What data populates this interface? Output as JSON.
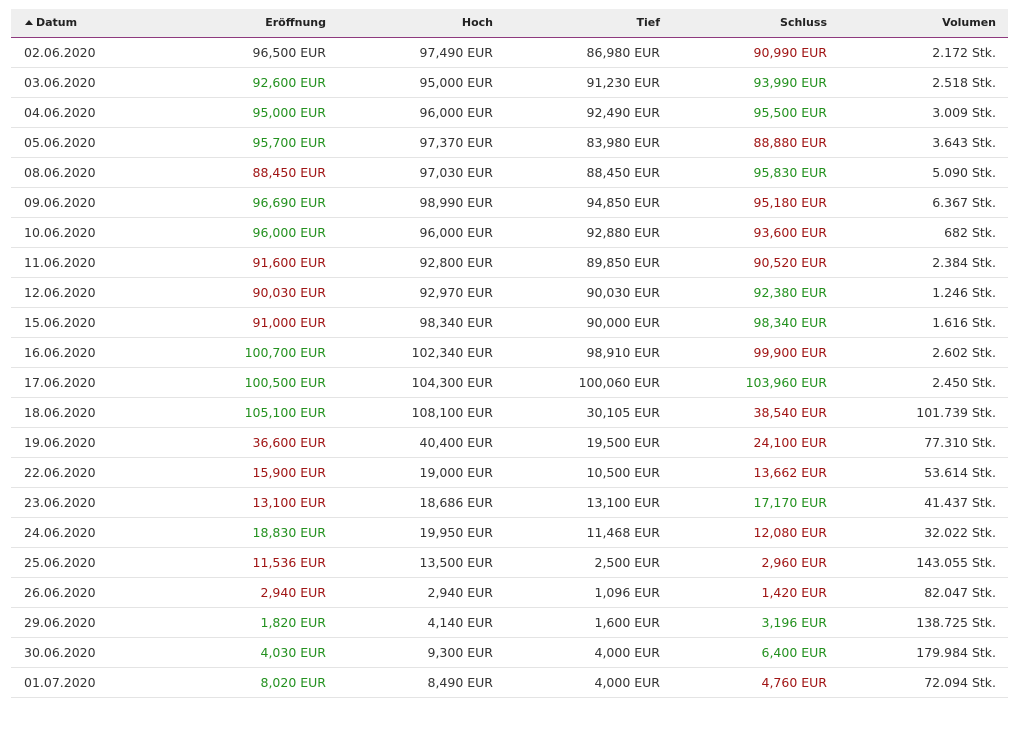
{
  "table": {
    "headers": {
      "date": "Datum",
      "open": "Eröffnung",
      "high": "Hoch",
      "low": "Tief",
      "close": "Schluss",
      "volume": "Volumen"
    },
    "sort_icon": "sort-ascending-icon",
    "colors": {
      "up": "#23911f",
      "down": "#a01515",
      "neutral": "#333333",
      "header_border": "#8e3a7e"
    },
    "rows": [
      {
        "date": "02.06.2020",
        "open": "96,500 EUR",
        "open_trend": "neutral",
        "high": "97,490 EUR",
        "low": "86,980 EUR",
        "close": "90,990 EUR",
        "close_trend": "down",
        "volume": "2.172 Stk."
      },
      {
        "date": "03.06.2020",
        "open": "92,600 EUR",
        "open_trend": "up",
        "high": "95,000 EUR",
        "low": "91,230 EUR",
        "close": "93,990 EUR",
        "close_trend": "up",
        "volume": "2.518 Stk."
      },
      {
        "date": "04.06.2020",
        "open": "95,000 EUR",
        "open_trend": "up",
        "high": "96,000 EUR",
        "low": "92,490 EUR",
        "close": "95,500 EUR",
        "close_trend": "up",
        "volume": "3.009 Stk."
      },
      {
        "date": "05.06.2020",
        "open": "95,700 EUR",
        "open_trend": "up",
        "high": "97,370 EUR",
        "low": "83,980 EUR",
        "close": "88,880 EUR",
        "close_trend": "down",
        "volume": "3.643 Stk."
      },
      {
        "date": "08.06.2020",
        "open": "88,450 EUR",
        "open_trend": "down",
        "high": "97,030 EUR",
        "low": "88,450 EUR",
        "close": "95,830 EUR",
        "close_trend": "up",
        "volume": "5.090 Stk."
      },
      {
        "date": "09.06.2020",
        "open": "96,690 EUR",
        "open_trend": "up",
        "high": "98,990 EUR",
        "low": "94,850 EUR",
        "close": "95,180 EUR",
        "close_trend": "down",
        "volume": "6.367 Stk."
      },
      {
        "date": "10.06.2020",
        "open": "96,000 EUR",
        "open_trend": "up",
        "high": "96,000 EUR",
        "low": "92,880 EUR",
        "close": "93,600 EUR",
        "close_trend": "down",
        "volume": "682 Stk."
      },
      {
        "date": "11.06.2020",
        "open": "91,600 EUR",
        "open_trend": "down",
        "high": "92,800 EUR",
        "low": "89,850 EUR",
        "close": "90,520 EUR",
        "close_trend": "down",
        "volume": "2.384 Stk."
      },
      {
        "date": "12.06.2020",
        "open": "90,030 EUR",
        "open_trend": "down",
        "high": "92,970 EUR",
        "low": "90,030 EUR",
        "close": "92,380 EUR",
        "close_trend": "up",
        "volume": "1.246 Stk."
      },
      {
        "date": "15.06.2020",
        "open": "91,000 EUR",
        "open_trend": "down",
        "high": "98,340 EUR",
        "low": "90,000 EUR",
        "close": "98,340 EUR",
        "close_trend": "up",
        "volume": "1.616 Stk."
      },
      {
        "date": "16.06.2020",
        "open": "100,700 EUR",
        "open_trend": "up",
        "high": "102,340 EUR",
        "low": "98,910 EUR",
        "close": "99,900 EUR",
        "close_trend": "down",
        "volume": "2.602 Stk."
      },
      {
        "date": "17.06.2020",
        "open": "100,500 EUR",
        "open_trend": "up",
        "high": "104,300 EUR",
        "low": "100,060 EUR",
        "close": "103,960 EUR",
        "close_trend": "up",
        "volume": "2.450 Stk."
      },
      {
        "date": "18.06.2020",
        "open": "105,100 EUR",
        "open_trend": "up",
        "high": "108,100 EUR",
        "low": "30,105 EUR",
        "close": "38,540 EUR",
        "close_trend": "down",
        "volume": "101.739 Stk."
      },
      {
        "date": "19.06.2020",
        "open": "36,600 EUR",
        "open_trend": "down",
        "high": "40,400 EUR",
        "low": "19,500 EUR",
        "close": "24,100 EUR",
        "close_trend": "down",
        "volume": "77.310 Stk."
      },
      {
        "date": "22.06.2020",
        "open": "15,900 EUR",
        "open_trend": "down",
        "high": "19,000 EUR",
        "low": "10,500 EUR",
        "close": "13,662 EUR",
        "close_trend": "down",
        "volume": "53.614 Stk."
      },
      {
        "date": "23.06.2020",
        "open": "13,100 EUR",
        "open_trend": "down",
        "high": "18,686 EUR",
        "low": "13,100 EUR",
        "close": "17,170 EUR",
        "close_trend": "up",
        "volume": "41.437 Stk."
      },
      {
        "date": "24.06.2020",
        "open": "18,830 EUR",
        "open_trend": "up",
        "high": "19,950 EUR",
        "low": "11,468 EUR",
        "close": "12,080 EUR",
        "close_trend": "down",
        "volume": "32.022 Stk."
      },
      {
        "date": "25.06.2020",
        "open": "11,536 EUR",
        "open_trend": "down",
        "high": "13,500 EUR",
        "low": "2,500 EUR",
        "close": "2,960 EUR",
        "close_trend": "down",
        "volume": "143.055 Stk."
      },
      {
        "date": "26.06.2020",
        "open": "2,940 EUR",
        "open_trend": "down",
        "high": "2,940 EUR",
        "low": "1,096 EUR",
        "close": "1,420 EUR",
        "close_trend": "down",
        "volume": "82.047 Stk."
      },
      {
        "date": "29.06.2020",
        "open": "1,820 EUR",
        "open_trend": "up",
        "high": "4,140 EUR",
        "low": "1,600 EUR",
        "close": "3,196 EUR",
        "close_trend": "up",
        "volume": "138.725 Stk."
      },
      {
        "date": "30.06.2020",
        "open": "4,030 EUR",
        "open_trend": "up",
        "high": "9,300 EUR",
        "low": "4,000 EUR",
        "close": "6,400 EUR",
        "close_trend": "up",
        "volume": "179.984 Stk."
      },
      {
        "date": "01.07.2020",
        "open": "8,020 EUR",
        "open_trend": "up",
        "high": "8,490 EUR",
        "low": "4,000 EUR",
        "close": "4,760 EUR",
        "close_trend": "down",
        "volume": "72.094 Stk."
      }
    ]
  }
}
